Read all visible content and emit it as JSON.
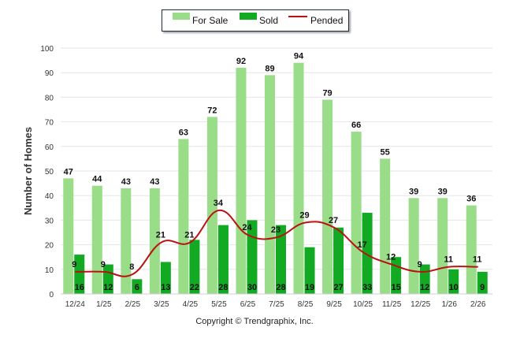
{
  "legend": {
    "for_sale": "For Sale",
    "sold": "Sold",
    "pended": "Pended"
  },
  "footer": {
    "copyright": "Copyright © Trendgraphix, Inc."
  },
  "chart_data": {
    "type": "bar",
    "title": "",
    "xlabel": "",
    "ylabel": "Number of Homes",
    "ylim": [
      0,
      100
    ],
    "yticks": [
      0,
      10,
      20,
      30,
      40,
      50,
      60,
      70,
      80,
      90,
      100
    ],
    "grid": true,
    "legend_position": "top-center",
    "categories": [
      "12/24",
      "1/25",
      "2/25",
      "3/25",
      "4/25",
      "5/25",
      "6/25",
      "7/25",
      "8/25",
      "9/25",
      "10/25",
      "11/25",
      "12/25",
      "1/26",
      "2/26"
    ],
    "series": [
      {
        "name": "For Sale",
        "type": "bar",
        "color": "#99dd88",
        "values": [
          47,
          44,
          43,
          43,
          63,
          72,
          92,
          89,
          94,
          79,
          66,
          55,
          39,
          39,
          36
        ]
      },
      {
        "name": "Sold",
        "type": "bar",
        "color": "#11aa22",
        "values": [
          16,
          12,
          6,
          13,
          22,
          28,
          30,
          28,
          19,
          27,
          33,
          15,
          12,
          10,
          9
        ]
      },
      {
        "name": "Pended",
        "type": "line",
        "color": "#bb1111",
        "smooth": true,
        "values": [
          9,
          9,
          8,
          21,
          21,
          34,
          24,
          23,
          29,
          27,
          17,
          12,
          9,
          11,
          11
        ]
      }
    ]
  }
}
